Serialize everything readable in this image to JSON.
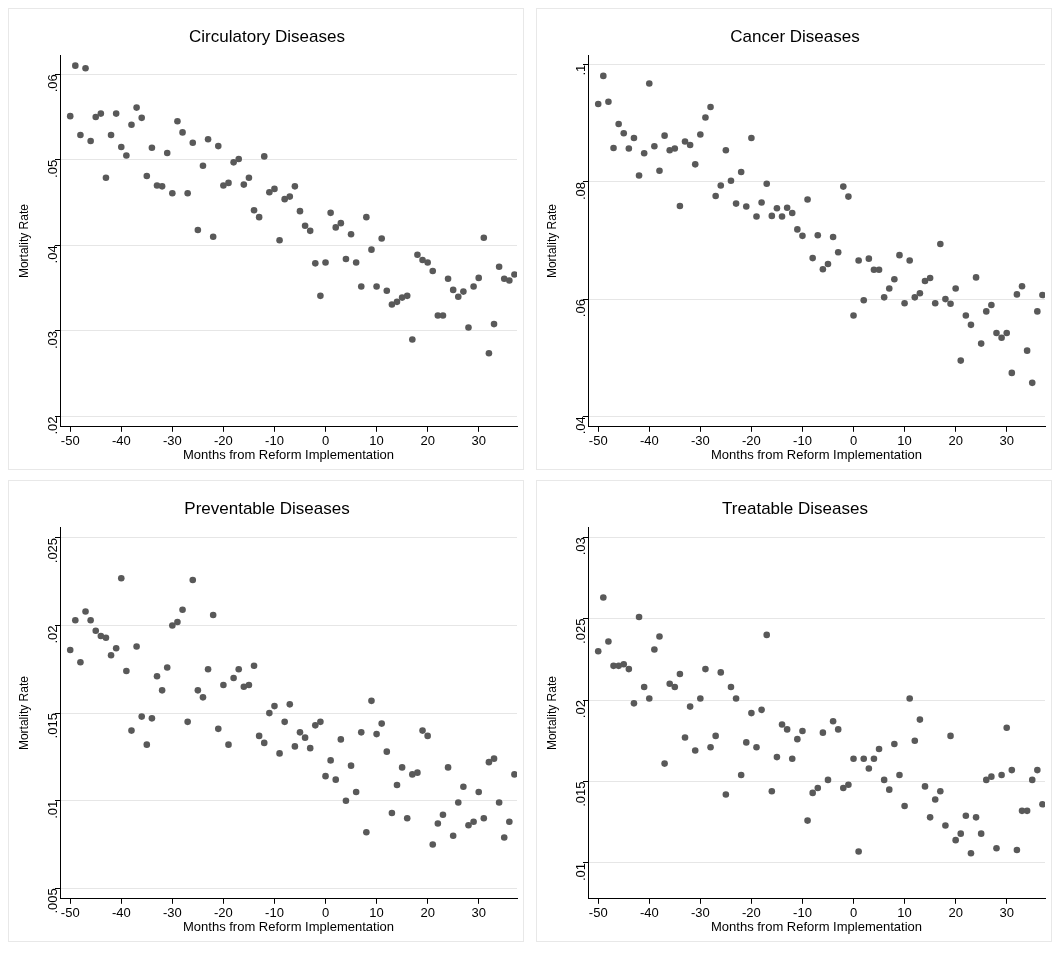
{
  "chart_data": [
    {
      "type": "scatter",
      "title": "Circulatory Diseases",
      "xlabel": "Months from Reform Implementation",
      "ylabel": "Mortality Rate",
      "color": "#595959",
      "marker": "circle",
      "grid": "y",
      "xlim": [
        -52,
        37.5
      ],
      "ylim": [
        0.0188,
        0.0622
      ],
      "xticks": [
        -50,
        -40,
        -30,
        -20,
        -10,
        0,
        10,
        20,
        30
      ],
      "yticks": [
        {
          "value": 0.02,
          "label": ".02"
        },
        {
          "value": 0.03,
          "label": ".03"
        },
        {
          "value": 0.04,
          "label": ".04"
        },
        {
          "value": 0.05,
          "label": ".05"
        },
        {
          "value": 0.06,
          "label": ".06"
        }
      ],
      "x": [
        -50,
        -49,
        -48,
        -47,
        -46,
        -45,
        -44,
        -43,
        -42,
        -41,
        -40,
        -39,
        -38,
        -37,
        -36,
        -35,
        -34,
        -33,
        -32,
        -31,
        -30,
        -29,
        -28,
        -27,
        -26,
        -25,
        -24,
        -23,
        -22,
        -21,
        -20,
        -19,
        -18,
        -17,
        -16,
        -15,
        -14,
        -13,
        -12,
        -11,
        -10,
        -9,
        -8,
        -7,
        -6,
        -5,
        -4,
        -3,
        -2,
        -1,
        0,
        1,
        2,
        3,
        4,
        5,
        6,
        7,
        8,
        9,
        10,
        11,
        12,
        13,
        14,
        15,
        16,
        17,
        18,
        19,
        20,
        21,
        22,
        23,
        24,
        25,
        26,
        27,
        28,
        29,
        30,
        31,
        32,
        33,
        34,
        35,
        36,
        37
      ],
      "values": [
        0.0551,
        0.061,
        0.0529,
        0.0607,
        0.0522,
        0.055,
        0.0554,
        0.0479,
        0.0529,
        0.0554,
        0.0515,
        0.0505,
        0.0541,
        0.0561,
        0.0549,
        0.0481,
        0.0514,
        0.047,
        0.0469,
        0.0508,
        0.0461,
        0.0545,
        0.0532,
        0.0461,
        0.052,
        0.0418,
        0.0493,
        0.0524,
        0.041,
        0.0516,
        0.047,
        0.0473,
        0.0497,
        0.0501,
        0.0471,
        0.0479,
        0.0441,
        0.0433,
        0.0504,
        0.0462,
        0.0466,
        0.0406,
        0.0454,
        0.0457,
        0.0469,
        0.044,
        0.0423,
        0.0417,
        0.0379,
        0.0341,
        0.038,
        0.0438,
        0.0421,
        0.0426,
        0.0384,
        0.0413,
        0.038,
        0.0352,
        0.0433,
        0.0395,
        0.0352,
        0.0408,
        0.0347,
        0.0331,
        0.0334,
        0.0339,
        0.0341,
        0.029,
        0.0389,
        0.0383,
        0.038,
        0.037,
        0.0318,
        0.0318,
        0.0361,
        0.0348,
        0.034,
        0.0346,
        0.0304,
        0.0352,
        0.0362,
        0.0409,
        0.0274,
        0.0308,
        0.0375,
        0.0361,
        0.0359,
        0.0366
      ]
    },
    {
      "type": "scatter",
      "title": "Cancer Diseases",
      "xlabel": "Months from Reform Implementation",
      "ylabel": "Mortality Rate",
      "color": "#595959",
      "marker": "circle",
      "grid": "y",
      "xlim": [
        -52,
        37.5
      ],
      "ylim": [
        0.0382,
        0.1016
      ],
      "xticks": [
        -50,
        -40,
        -30,
        -20,
        -10,
        0,
        10,
        20,
        30
      ],
      "yticks": [
        {
          "value": 0.04,
          "label": ".04"
        },
        {
          "value": 0.06,
          "label": ".06"
        },
        {
          "value": 0.08,
          "label": ".08"
        },
        {
          "value": 0.1,
          "label": ".1"
        }
      ],
      "x": [
        -50,
        -49,
        -48,
        -47,
        -46,
        -45,
        -44,
        -43,
        -42,
        -41,
        -40,
        -39,
        -38,
        -37,
        -36,
        -35,
        -34,
        -33,
        -32,
        -31,
        -30,
        -29,
        -28,
        -27,
        -26,
        -25,
        -24,
        -23,
        -22,
        -21,
        -20,
        -19,
        -18,
        -17,
        -16,
        -15,
        -14,
        -13,
        -12,
        -11,
        -10,
        -9,
        -8,
        -7,
        -6,
        -5,
        -4,
        -3,
        -2,
        -1,
        0,
        1,
        2,
        3,
        4,
        5,
        6,
        7,
        8,
        9,
        10,
        11,
        12,
        13,
        14,
        15,
        16,
        17,
        18,
        19,
        20,
        21,
        22,
        23,
        24,
        25,
        26,
        27,
        28,
        29,
        30,
        31,
        32,
        33,
        34,
        35,
        36,
        37
      ],
      "values": [
        0.0933,
        0.0981,
        0.0937,
        0.0858,
        0.0899,
        0.0883,
        0.0857,
        0.0875,
        0.0811,
        0.0849,
        0.0968,
        0.0861,
        0.0819,
        0.0879,
        0.0854,
        0.0857,
        0.0759,
        0.0869,
        0.0863,
        0.083,
        0.0881,
        0.091,
        0.0928,
        0.0776,
        0.0794,
        0.0854,
        0.0802,
        0.0763,
        0.0817,
        0.0758,
        0.0875,
        0.0741,
        0.0765,
        0.0797,
        0.0742,
        0.0755,
        0.0741,
        0.0756,
        0.0747,
        0.0719,
        0.0708,
        0.077,
        0.067,
        0.0709,
        0.0651,
        0.066,
        0.0706,
        0.068,
        0.0792,
        0.0775,
        0.0572,
        0.0666,
        0.0598,
        0.0669,
        0.065,
        0.065,
        0.0603,
        0.0618,
        0.0634,
        0.0675,
        0.0593,
        0.0666,
        0.0603,
        0.061,
        0.0631,
        0.0636,
        0.0593,
        0.0694,
        0.06,
        0.0592,
        0.0618,
        0.0495,
        0.0572,
        0.0556,
        0.0637,
        0.0524,
        0.0579,
        0.059,
        0.0542,
        0.0534,
        0.0542,
        0.0474,
        0.0608,
        0.0622,
        0.0512,
        0.0457,
        0.0579,
        0.0607
      ]
    },
    {
      "type": "scatter",
      "title": "Preventable Diseases",
      "xlabel": "Months from Reform Implementation",
      "ylabel": "Mortality Rate",
      "color": "#595959",
      "marker": "circle",
      "grid": "y",
      "xlim": [
        -52,
        37.5
      ],
      "ylim": [
        0.0044,
        0.0256
      ],
      "xticks": [
        -50,
        -40,
        -30,
        -20,
        -10,
        0,
        10,
        20,
        30
      ],
      "yticks": [
        {
          "value": 0.005,
          "label": ".005"
        },
        {
          "value": 0.01,
          "label": ".01"
        },
        {
          "value": 0.015,
          "label": ".015"
        },
        {
          "value": 0.02,
          "label": ".02"
        },
        {
          "value": 0.025,
          "label": ".025"
        }
      ],
      "x": [
        -50,
        -49,
        -48,
        -47,
        -46,
        -45,
        -44,
        -43,
        -42,
        -41,
        -40,
        -39,
        -38,
        -37,
        -36,
        -35,
        -34,
        -33,
        -32,
        -31,
        -30,
        -29,
        -28,
        -27,
        -26,
        -25,
        -24,
        -23,
        -22,
        -21,
        -20,
        -19,
        -18,
        -17,
        -16,
        -15,
        -14,
        -13,
        -12,
        -11,
        -10,
        -9,
        -8,
        -7,
        -6,
        -5,
        -4,
        -3,
        -2,
        -1,
        0,
        1,
        2,
        3,
        4,
        5,
        6,
        7,
        8,
        9,
        10,
        11,
        12,
        13,
        14,
        15,
        16,
        17,
        18,
        19,
        20,
        21,
        22,
        23,
        24,
        25,
        26,
        27,
        28,
        29,
        30,
        31,
        32,
        33,
        34,
        35,
        36,
        37
      ],
      "values": [
        0.0186,
        0.0203,
        0.0179,
        0.0208,
        0.0203,
        0.0197,
        0.0194,
        0.0193,
        0.0183,
        0.0187,
        0.0227,
        0.0174,
        0.014,
        0.0188,
        0.0148,
        0.0132,
        0.0147,
        0.0171,
        0.0163,
        0.0176,
        0.02,
        0.0202,
        0.0209,
        0.0145,
        0.0226,
        0.0163,
        0.0159,
        0.0175,
        0.0206,
        0.0141,
        0.0166,
        0.0132,
        0.017,
        0.0175,
        0.0165,
        0.0166,
        0.0177,
        0.0137,
        0.0133,
        0.015,
        0.0154,
        0.0127,
        0.0145,
        0.0155,
        0.0131,
        0.0139,
        0.0136,
        0.013,
        0.0143,
        0.0145,
        0.0114,
        0.0123,
        0.0112,
        0.0135,
        0.01,
        0.012,
        0.0105,
        0.0139,
        0.0082,
        0.0157,
        0.0138,
        0.0144,
        0.0128,
        0.0093,
        0.0109,
        0.0119,
        0.009,
        0.0115,
        0.0116,
        0.014,
        0.0137,
        0.0075,
        0.0087,
        0.0092,
        0.0119,
        0.008,
        0.0099,
        0.0108,
        0.0086,
        0.0088,
        0.0105,
        0.009,
        0.0122,
        0.0124,
        0.0099,
        0.0079,
        0.0088,
        0.0115
      ]
    },
    {
      "type": "scatter",
      "title": "Treatable Diseases",
      "xlabel": "Months from Reform Implementation",
      "ylabel": "Mortality Rate",
      "color": "#595959",
      "marker": "circle",
      "grid": "y",
      "xlim": [
        -52,
        37.5
      ],
      "ylim": [
        0.0078,
        0.0306
      ],
      "xticks": [
        -50,
        -40,
        -30,
        -20,
        -10,
        0,
        10,
        20,
        30
      ],
      "yticks": [
        {
          "value": 0.01,
          "label": ".01"
        },
        {
          "value": 0.015,
          "label": ".015"
        },
        {
          "value": 0.02,
          "label": ".02"
        },
        {
          "value": 0.025,
          "label": ".025"
        },
        {
          "value": 0.03,
          "label": ".03"
        }
      ],
      "x": [
        -50,
        -49,
        -48,
        -47,
        -46,
        -45,
        -44,
        -43,
        -42,
        -41,
        -40,
        -39,
        -38,
        -37,
        -36,
        -35,
        -34,
        -33,
        -32,
        -31,
        -30,
        -29,
        -28,
        -27,
        -26,
        -25,
        -24,
        -23,
        -22,
        -21,
        -20,
        -19,
        -18,
        -17,
        -16,
        -15,
        -14,
        -13,
        -12,
        -11,
        -10,
        -9,
        -8,
        -7,
        -6,
        -5,
        -4,
        -3,
        -2,
        -1,
        0,
        1,
        2,
        3,
        4,
        5,
        6,
        7,
        8,
        9,
        10,
        11,
        12,
        13,
        14,
        15,
        16,
        17,
        18,
        19,
        20,
        21,
        22,
        23,
        24,
        25,
        26,
        27,
        28,
        29,
        30,
        31,
        32,
        33,
        34,
        35,
        36,
        37
      ],
      "values": [
        0.023,
        0.0263,
        0.0236,
        0.0221,
        0.0221,
        0.0222,
        0.0219,
        0.0198,
        0.0251,
        0.0208,
        0.0201,
        0.0231,
        0.0239,
        0.0161,
        0.021,
        0.0208,
        0.0216,
        0.0177,
        0.0196,
        0.0169,
        0.0201,
        0.0219,
        0.0171,
        0.0178,
        0.0217,
        0.0142,
        0.0208,
        0.0201,
        0.0154,
        0.0174,
        0.0192,
        0.0171,
        0.0194,
        0.024,
        0.0144,
        0.0165,
        0.0185,
        0.0182,
        0.0164,
        0.0176,
        0.0181,
        0.0126,
        0.0143,
        0.0146,
        0.018,
        0.0151,
        0.0187,
        0.0182,
        0.0146,
        0.0148,
        0.0164,
        0.0107,
        0.0164,
        0.0158,
        0.0164,
        0.017,
        0.0151,
        0.0145,
        0.0173,
        0.0154,
        0.0135,
        0.0201,
        0.0175,
        0.0188,
        0.0147,
        0.0128,
        0.0139,
        0.0144,
        0.0123,
        0.0178,
        0.0114,
        0.0118,
        0.0129,
        0.0106,
        0.0128,
        0.0118,
        0.0151,
        0.0153,
        0.0109,
        0.0154,
        0.0183,
        0.0157,
        0.0108,
        0.0132,
        0.0132,
        0.0151,
        0.0157,
        0.0136
      ]
    }
  ]
}
